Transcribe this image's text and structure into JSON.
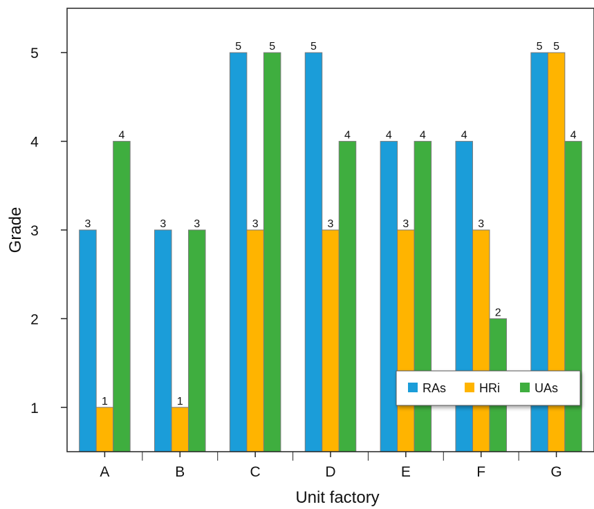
{
  "chart_data": {
    "type": "bar",
    "xlabel": "Unit factory",
    "ylabel": "Grade",
    "categories": [
      "A",
      "B",
      "C",
      "D",
      "E",
      "F",
      "G"
    ],
    "series": [
      {
        "name": "RAs",
        "color": "#1b9dd9",
        "values": [
          3,
          3,
          5,
          5,
          4,
          4,
          5
        ]
      },
      {
        "name": "HRi",
        "color": "#ffb400",
        "values": [
          1,
          1,
          3,
          3,
          3,
          3,
          5
        ]
      },
      {
        "name": "UAs",
        "color": "#3fae3f",
        "values": [
          4,
          3,
          5,
          4,
          4,
          2,
          4
        ]
      }
    ],
    "yticks": [
      "1",
      "2",
      "3",
      "4",
      "5"
    ],
    "ylim": [
      0.5,
      5.5
    ],
    "grid": false,
    "legend_position": "bottom-right",
    "data_labels": true
  }
}
